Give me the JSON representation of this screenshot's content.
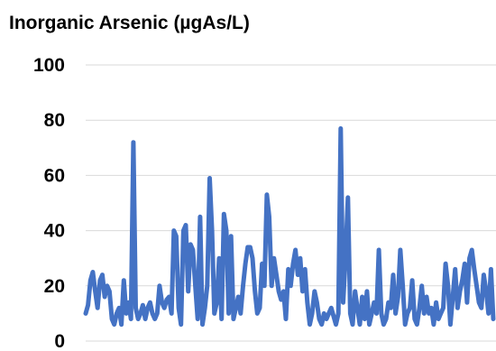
{
  "chart_data": {
    "type": "line",
    "title": "Inorganic Arsenic (µgAs/L)",
    "xlabel": "",
    "ylabel": "",
    "ylim": [
      0,
      100
    ],
    "yticks": [
      "0",
      "20",
      "40",
      "60",
      "80",
      "100"
    ],
    "grid": true,
    "legend": "none",
    "series": [
      {
        "color": "#4472C4",
        "values": [
          10,
          13,
          22,
          25,
          18,
          12,
          22,
          24,
          16,
          20,
          18,
          8,
          6,
          10,
          12,
          6,
          22,
          10,
          14,
          8,
          72,
          12,
          8,
          10,
          13,
          8,
          12,
          14,
          10,
          8,
          10,
          20,
          14,
          12,
          15,
          16,
          10,
          40,
          38,
          12,
          6,
          40,
          42,
          18,
          35,
          33,
          20,
          8,
          45,
          6,
          12,
          20,
          59,
          40,
          10,
          14,
          30,
          8,
          46,
          40,
          10,
          38,
          8,
          12,
          16,
          10,
          20,
          28,
          34,
          34,
          30,
          18,
          10,
          12,
          28,
          20,
          53,
          45,
          20,
          30,
          24,
          18,
          15,
          18,
          8,
          26,
          20,
          28,
          33,
          24,
          30,
          18,
          26,
          14,
          6,
          10,
          18,
          14,
          8,
          6,
          10,
          8,
          10,
          12,
          9,
          6,
          10,
          77,
          14,
          30,
          52,
          10,
          6,
          18,
          12,
          6,
          16,
          8,
          18,
          6,
          10,
          14,
          10,
          33,
          10,
          6,
          8,
          14,
          12,
          24,
          10,
          16,
          33,
          20,
          6,
          10,
          12,
          22,
          8,
          6,
          12,
          20,
          10,
          16,
          10,
          12,
          6,
          14,
          8,
          10,
          12,
          28,
          20,
          6,
          16,
          26,
          12,
          18,
          22,
          28,
          14,
          30,
          33,
          26,
          20,
          14,
          12,
          24,
          18,
          10,
          26,
          8
        ]
      }
    ]
  }
}
